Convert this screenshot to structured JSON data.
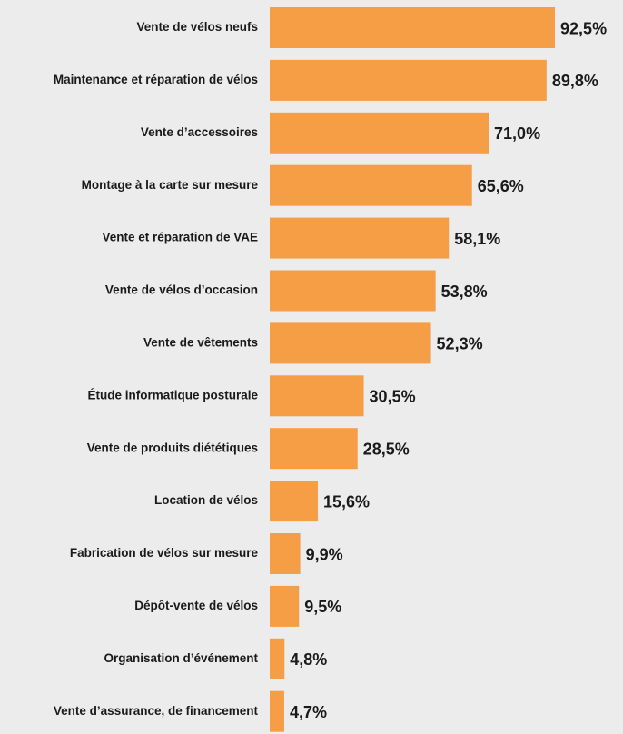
{
  "chart_data": {
    "type": "bar",
    "orientation": "horizontal",
    "categories": [
      "Vente de vélos neufs",
      "Maintenance et réparation de vélos",
      "Vente d’accessoires",
      "Montage à la carte sur mesure",
      "Vente et réparation de VAE",
      "Vente de vélos d’occasion",
      "Vente de vêtements",
      "Étude informatique posturale",
      "Vente de produits diététiques",
      "Location de vélos",
      "Fabrication de vélos sur mesure",
      "Dépôt-vente de vélos",
      "Organisation d’événement",
      "Vente d’assurance, de financement"
    ],
    "values": [
      92.5,
      89.8,
      71.0,
      65.6,
      58.1,
      53.8,
      52.3,
      30.5,
      28.5,
      15.6,
      9.9,
      9.5,
      4.8,
      4.7
    ],
    "value_labels": [
      "92,5%",
      "89,8%",
      "71,0%",
      "65,6%",
      "58,1%",
      "53,8%",
      "52,3%",
      "30,5%",
      "28,5%",
      "15,6%",
      "9,9%",
      "9,5%",
      "4,8%",
      "4,7%"
    ],
    "color": "#f59e45"
  }
}
